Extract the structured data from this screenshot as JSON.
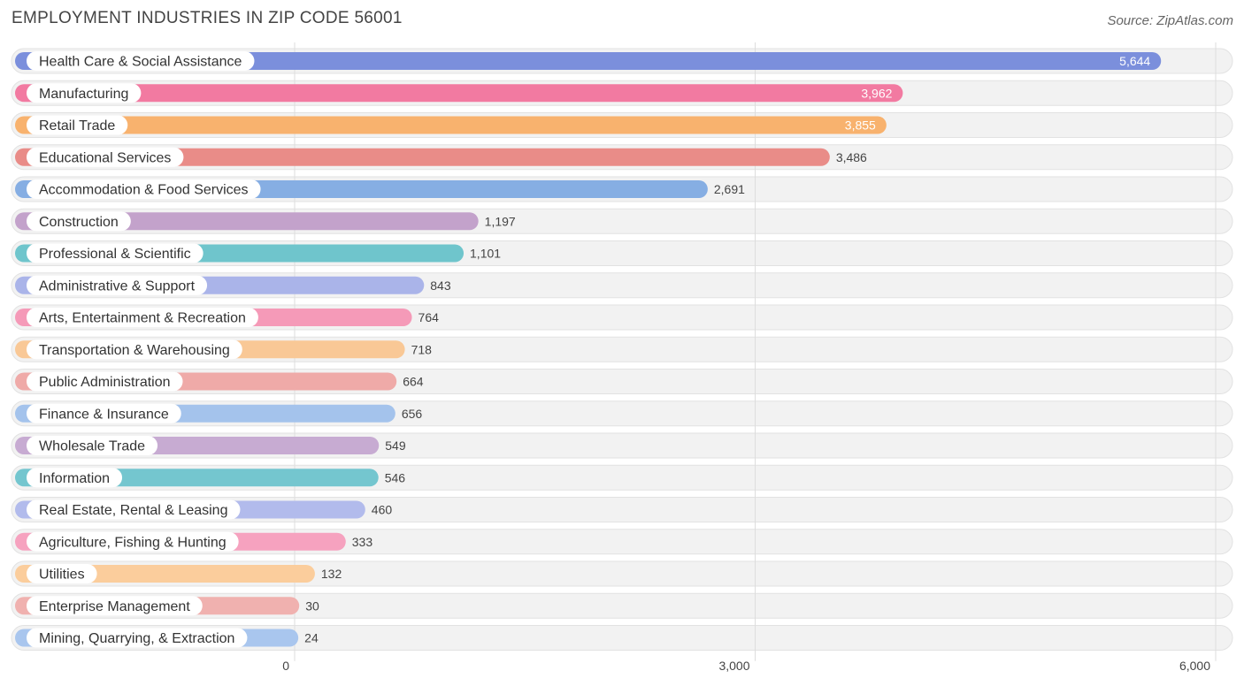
{
  "chart_data": {
    "type": "bar",
    "orientation": "horizontal",
    "title": "EMPLOYMENT INDUSTRIES IN ZIP CODE 56001",
    "source": "Source: ZipAtlas.com",
    "xlim": [
      0,
      6000
    ],
    "ticks": [
      {
        "value": 0,
        "label": "0"
      },
      {
        "value": 3000,
        "label": "3,000"
      },
      {
        "value": 6000,
        "label": "6,000"
      }
    ],
    "series": [
      {
        "name": "Health Care & Social Assistance",
        "value": 5644,
        "label": "5,644",
        "color": "#7b8fdc"
      },
      {
        "name": "Manufacturing",
        "value": 3962,
        "label": "3,962",
        "color": "#f27aa1"
      },
      {
        "name": "Retail Trade",
        "value": 3855,
        "label": "3,855",
        "color": "#f8b26e"
      },
      {
        "name": "Educational Services",
        "value": 3486,
        "label": "3,486",
        "color": "#e98c88"
      },
      {
        "name": "Accommodation & Food Services",
        "value": 2691,
        "label": "2,691",
        "color": "#86aee3"
      },
      {
        "name": "Construction",
        "value": 1197,
        "label": "1,197",
        "color": "#c3a2cb"
      },
      {
        "name": "Professional & Scientific",
        "value": 1101,
        "label": "1,101",
        "color": "#6fc5cc"
      },
      {
        "name": "Administrative & Support",
        "value": 843,
        "label": "843",
        "color": "#aab4e9"
      },
      {
        "name": "Arts, Entertainment & Recreation",
        "value": 764,
        "label": "764",
        "color": "#f59ab8"
      },
      {
        "name": "Transportation & Warehousing",
        "value": 718,
        "label": "718",
        "color": "#f9c896"
      },
      {
        "name": "Public Administration",
        "value": 664,
        "label": "664",
        "color": "#efaaa8"
      },
      {
        "name": "Finance & Insurance",
        "value": 656,
        "label": "656",
        "color": "#a4c3ec"
      },
      {
        "name": "Wholesale Trade",
        "value": 549,
        "label": "549",
        "color": "#c7abd2"
      },
      {
        "name": "Information",
        "value": 546,
        "label": "546",
        "color": "#74c6cf"
      },
      {
        "name": "Real Estate, Rental & Leasing",
        "value": 460,
        "label": "460",
        "color": "#b2bbec"
      },
      {
        "name": "Agriculture, Fishing & Hunting",
        "value": 333,
        "label": "333",
        "color": "#f6a2bf"
      },
      {
        "name": "Utilities",
        "value": 132,
        "label": "132",
        "color": "#fbcd9c"
      },
      {
        "name": "Enterprise Management",
        "value": 30,
        "label": "30",
        "color": "#f0b1af"
      },
      {
        "name": "Mining, Quarrying, & Extraction",
        "value": 24,
        "label": "24",
        "color": "#a9c6ee"
      }
    ]
  }
}
